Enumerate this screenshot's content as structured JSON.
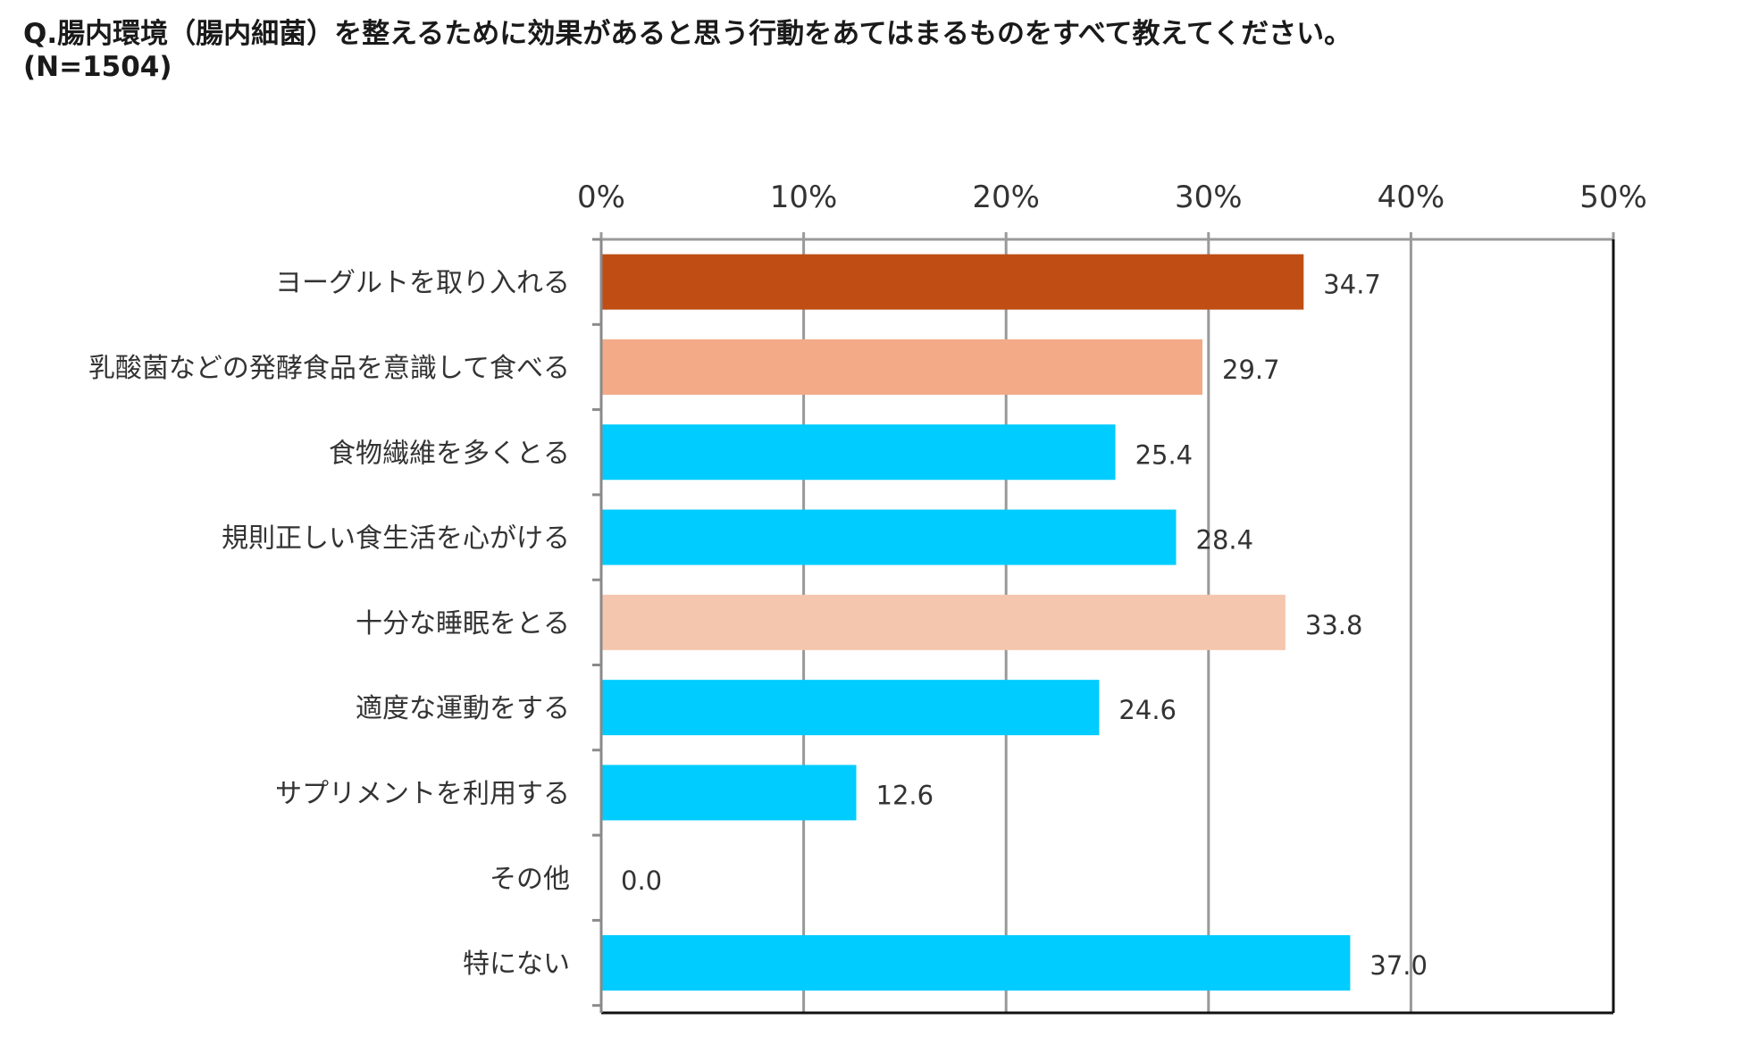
{
  "title": {
    "line1": "Q.腸内環境（腸内細菌）を整えるために効果があると思う行動をあてはまるものをすべて教えてください。",
    "line2": "(N=1504)"
  },
  "chart_data": {
    "type": "bar",
    "orientation": "horizontal",
    "title": "Q.腸内環境（腸内細菌）を整えるために効果があると思う行動をあてはまるものをすべて教えてください。(N=1504)",
    "categories": [
      "ヨーグルトを取り入れる",
      "乳酸菌などの発酵食品を意識して食べる",
      "食物繊維を多くとる",
      "規則正しい食生活を心がける",
      "十分な睡眠をとる",
      "適度な運動をする",
      "サプリメントを利用する",
      "その他",
      "特にない"
    ],
    "values": [
      34.7,
      29.7,
      25.4,
      28.4,
      33.8,
      24.6,
      12.6,
      0.0,
      37.0
    ],
    "value_labels": [
      "34.7",
      "29.7",
      "25.4",
      "28.4",
      "33.8",
      "24.6",
      "12.6",
      "0.0",
      "37.0"
    ],
    "colors": [
      "#C04E14",
      "#F2AA87",
      "#00CCFF",
      "#00CCFF",
      "#F5C6AE",
      "#00CCFF",
      "#00CCFF",
      "#00CCFF",
      "#00CCFF"
    ],
    "xlim": [
      0,
      50
    ],
    "ticks": [
      0,
      10,
      20,
      30,
      40,
      50
    ],
    "tick_labels": [
      "0%",
      "10%",
      "20%",
      "30%",
      "40%",
      "50%"
    ],
    "xlabel": "",
    "ylabel": "",
    "grid": true,
    "axis_position": "top"
  }
}
